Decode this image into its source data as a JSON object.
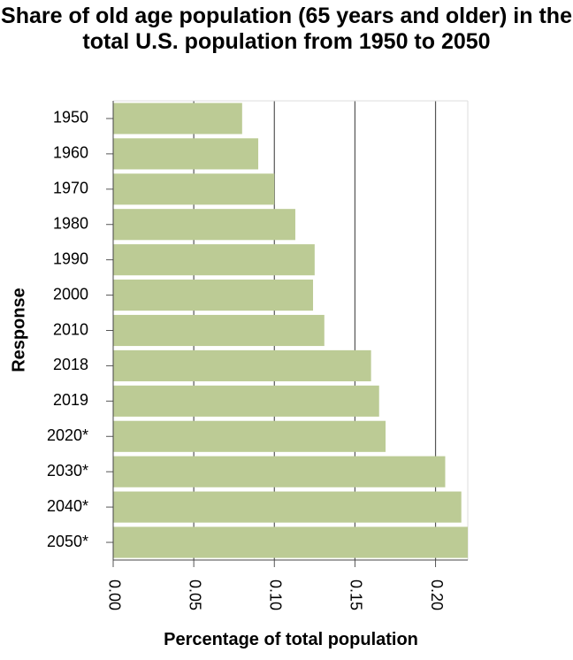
{
  "chart_data": {
    "type": "bar",
    "orientation": "horizontal",
    "title": "Share of old age population (65 years and older) in the total U.S. population from 1950 to 2050",
    "xlabel": "Percentage of total population",
    "ylabel": "Response",
    "categories": [
      "1950",
      "1960",
      "1970",
      "1980",
      "1990",
      "2000",
      "2010",
      "2018",
      "2019",
      "2020*",
      "2030*",
      "2040*",
      "2050*"
    ],
    "values": [
      0.08,
      0.09,
      0.1,
      0.113,
      0.125,
      0.124,
      0.131,
      0.16,
      0.165,
      0.169,
      0.206,
      0.216,
      0.221
    ],
    "xlim": [
      0,
      0.22
    ],
    "xticks": [
      "0.00",
      "0.05",
      "0.10",
      "0.15",
      "0.20"
    ],
    "grid": "vertical",
    "bar_color": "#bccb95",
    "grid_color": "#555555"
  }
}
